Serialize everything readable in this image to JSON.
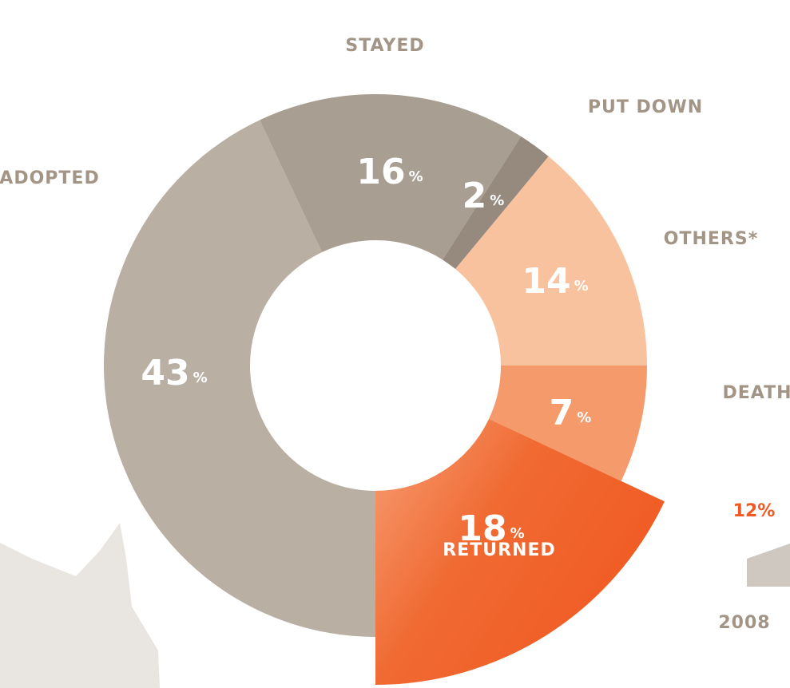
{
  "chart_data": [
    {
      "type": "donut",
      "categories": [
        "ADOPTED",
        "STAYED",
        "PUT DOWN",
        "OTHERS*",
        "DEATH",
        "RETURNED"
      ],
      "values": [
        43,
        16,
        2,
        14,
        7,
        18
      ],
      "unit": "%",
      "colors": [
        "#b9afa3",
        "#a89e92",
        "#968a7e",
        "#f9c29e",
        "#f59a6a",
        "#f05a22"
      ]
    },
    {
      "type": "bar",
      "categories": [
        "2008"
      ],
      "values": [
        12
      ],
      "value_labels": [
        "12%"
      ],
      "color": "#cfc8c0",
      "label_color": "#f05a22"
    }
  ]
}
